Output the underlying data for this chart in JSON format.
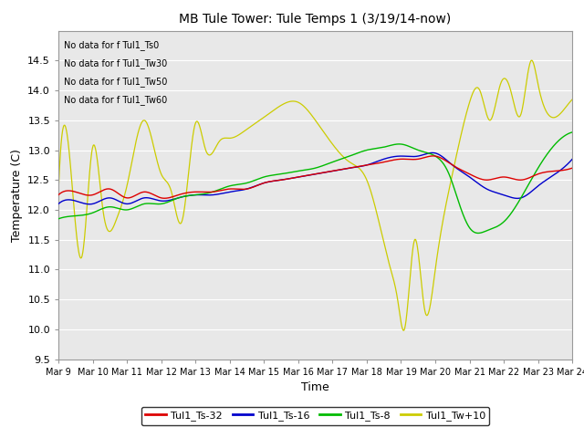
{
  "title": "MB Tule Tower: Tule Temps 1 (3/19/14-now)",
  "xlabel": "Time",
  "ylabel": "Temperature (C)",
  "ylim": [
    9.5,
    15.0
  ],
  "yticks": [
    9.5,
    10.0,
    10.5,
    11.0,
    11.5,
    12.0,
    12.5,
    13.0,
    13.5,
    14.0,
    14.5
  ],
  "xtick_labels": [
    "Mar 9",
    "Mar 10",
    "Mar 11",
    "Mar 12",
    "Mar 13",
    "Mar 14",
    "Mar 15",
    "Mar 16",
    "Mar 17",
    "Mar 18",
    "Mar 19",
    "Mar 20",
    "Mar 21",
    "Mar 22",
    "Mar 23",
    "Mar 24"
  ],
  "background_color": "#e8e8e8",
  "no_data_lines": [
    "No data for f Tul1_Ts0",
    "No data for f Tul1_Tw30",
    "No data for f Tul1_Tw50",
    "No data for f Tul1_Tw60"
  ],
  "legend_entries": [
    {
      "label": "Tul1_Ts-32",
      "color": "#dd0000"
    },
    {
      "label": "Tul1_Ts-16",
      "color": "#0000cc"
    },
    {
      "label": "Tul1_Ts-8",
      "color": "#00bb00"
    },
    {
      "label": "Tul1_Tw+10",
      "color": "#cccc00"
    }
  ],
  "n_days": 15,
  "figsize": [
    6.4,
    4.8
  ],
  "dpi": 100
}
